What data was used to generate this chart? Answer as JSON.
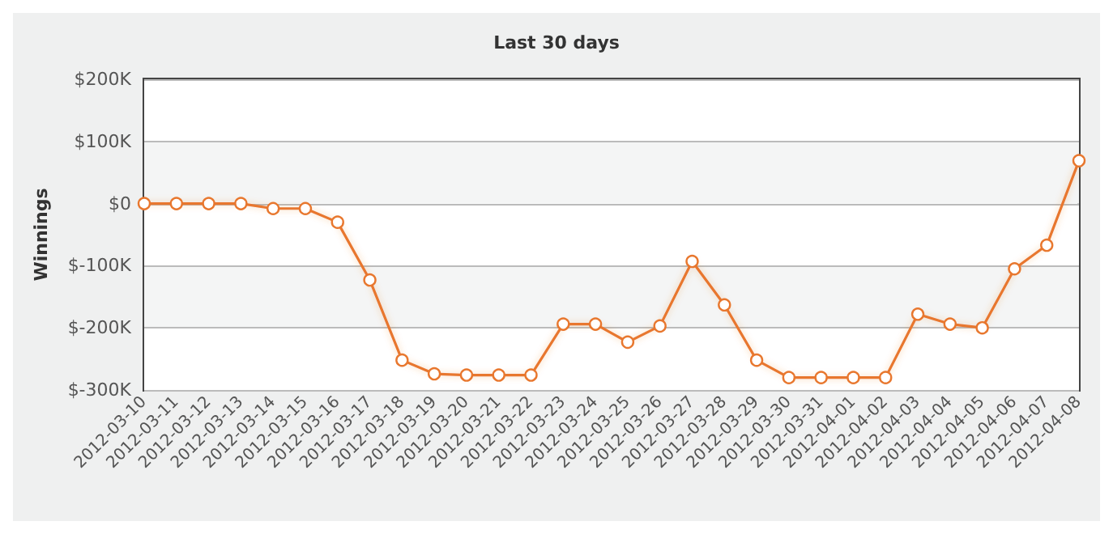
{
  "chart_data": {
    "type": "line",
    "title": "Last 30 days",
    "ylabel": "Winnings",
    "categories": [
      "2012-03-10",
      "2012-03-11",
      "2012-03-12",
      "2012-03-13",
      "2012-03-14",
      "2012-03-15",
      "2012-03-16",
      "2012-03-17",
      "2012-03-18",
      "2012-03-19",
      "2012-03-20",
      "2012-03-21",
      "2012-03-22",
      "2012-03-23",
      "2012-03-24",
      "2012-03-25",
      "2012-03-26",
      "2012-03-27",
      "2012-03-28",
      "2012-03-29",
      "2012-03-30",
      "2012-03-31",
      "2012-04-01",
      "2012-04-02",
      "2012-04-03",
      "2012-04-04",
      "2012-04-05",
      "2012-04-06",
      "2012-04-07",
      "2012-04-08"
    ],
    "series": [
      {
        "color": "#e8772e",
        "values": [
          0,
          0,
          0,
          0,
          -8000,
          -8000,
          -30000,
          -123000,
          -252000,
          -274000,
          -276000,
          -276000,
          -276000,
          -194000,
          -194000,
          -223000,
          -197000,
          -93000,
          -163000,
          -252000,
          -280000,
          -280000,
          -280000,
          -280000,
          -178000,
          -194000,
          -200000,
          -105000,
          -67000,
          69000
        ]
      }
    ],
    "ylim": [
      -300000,
      200000
    ],
    "yticks": [
      {
        "value": -300000,
        "label": "$-300K"
      },
      {
        "value": -200000,
        "label": "$-200K"
      },
      {
        "value": -100000,
        "label": "$-100K"
      },
      {
        "value": 0,
        "label": "$0"
      },
      {
        "value": 100000,
        "label": "$100K"
      },
      {
        "value": 200000,
        "label": "$200K"
      }
    ],
    "grid": "y",
    "marker": "circle",
    "line_style": "solid"
  }
}
